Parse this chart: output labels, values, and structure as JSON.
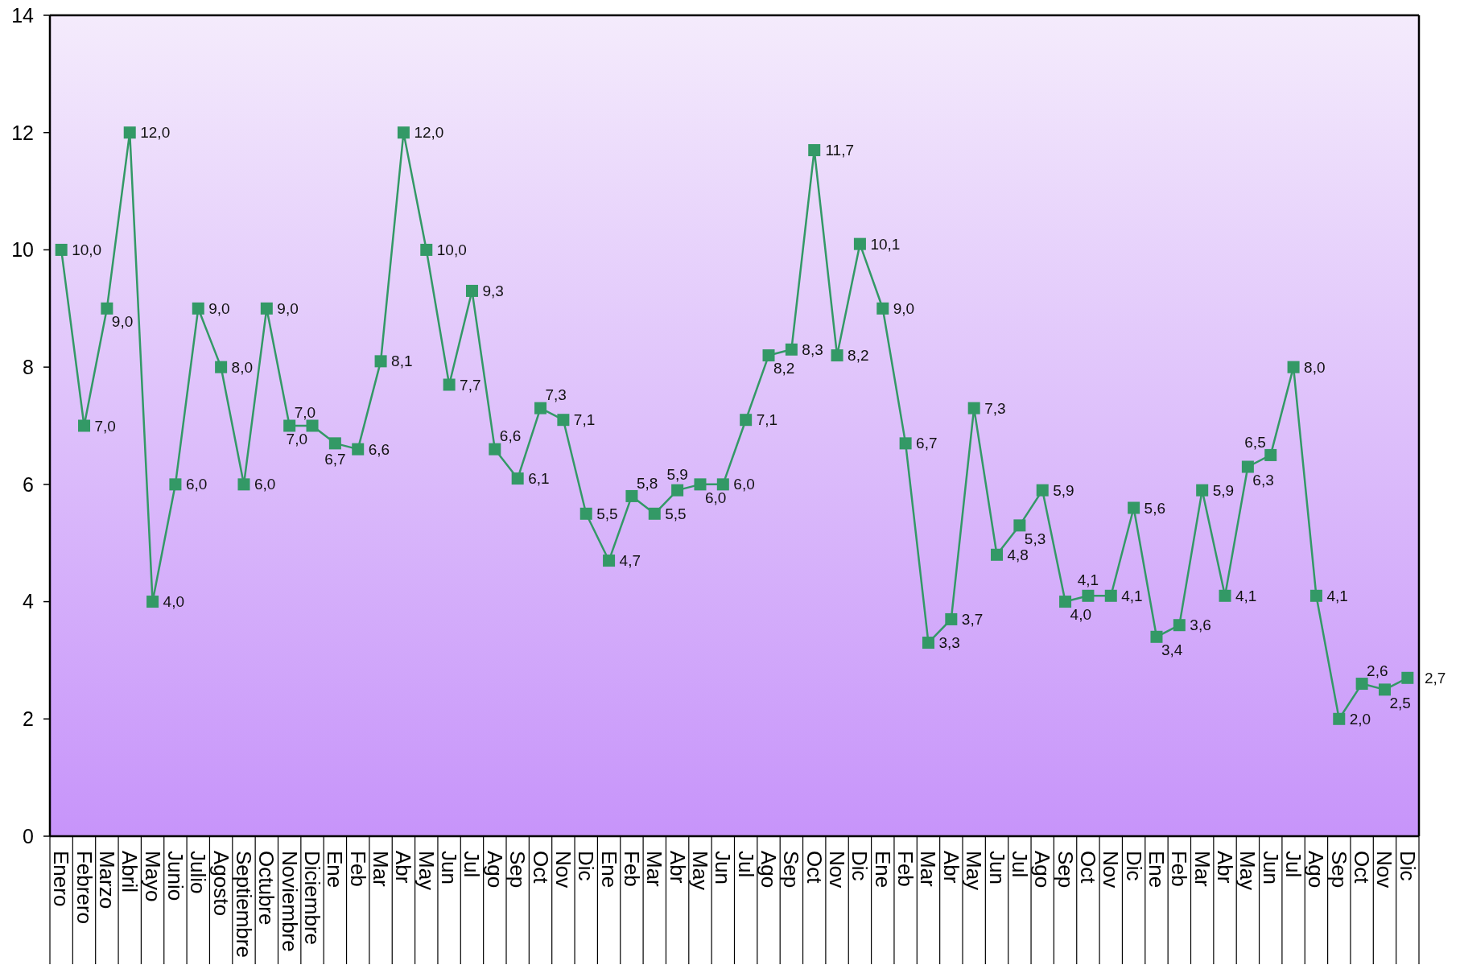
{
  "chart_data": {
    "type": "line",
    "categories": [
      "Enero",
      "Febrero",
      "Marzo",
      "Abril",
      "Mayo",
      "Junio",
      "Julio",
      "Agosto",
      "Septiembre",
      "Octubre",
      "Noviembre",
      "Diciembre",
      "Ene",
      "Feb",
      "Mar",
      "Abr",
      "May",
      "Jun",
      "Jul",
      "Ago",
      "Sep",
      "Oct",
      "Nov",
      "Dic",
      "Ene",
      "Feb",
      "Mar",
      "Abr",
      "May",
      "Jun",
      "Jul",
      "Ago",
      "Sep",
      "Oct",
      "Nov",
      "Dic",
      "Ene",
      "Feb",
      "Mar",
      "Abr",
      "May",
      "Jun",
      "Jul",
      "Ago",
      "Sep",
      "Oct",
      "Nov",
      "Dic",
      "Ene",
      "Feb",
      "Mar",
      "Abr",
      "May",
      "Jun",
      "Jul",
      "Ago",
      "Sep",
      "Oct",
      "Nov",
      "Dic"
    ],
    "series": [
      {
        "color": "#339966",
        "values": [
          10.0,
          7.0,
          9.0,
          12.0,
          4.0,
          6.0,
          9.0,
          8.0,
          6.0,
          9.0,
          7.0,
          7.0,
          6.7,
          6.6,
          8.1,
          12.0,
          10.0,
          7.7,
          9.3,
          6.6,
          6.1,
          7.3,
          7.1,
          5.5,
          4.7,
          5.8,
          5.5,
          5.9,
          6.0,
          6.0,
          7.1,
          8.2,
          8.3,
          11.7,
          8.2,
          10.1,
          9.0,
          6.7,
          3.3,
          3.7,
          7.3,
          4.8,
          5.3,
          5.9,
          4.0,
          4.1,
          4.1,
          5.6,
          3.4,
          3.6,
          5.9,
          4.1,
          6.3,
          6.5,
          8.0,
          4.1,
          2.0,
          2.6,
          2.5,
          2.7
        ],
        "value_labels": [
          "10,0",
          "7,0",
          "9,0",
          "12,0",
          "4,0",
          "6,0",
          "9,0",
          "8,0",
          "6,0",
          "9,0",
          "7,0",
          "7,0",
          "6,7",
          "6,6",
          "8,1",
          "12,0",
          "10,0",
          "7,7",
          "9,3",
          "6,6",
          "6,1",
          "7,3",
          "7,1",
          "5,5",
          "4,7",
          "5,8",
          "5,5",
          "5,9",
          "6,0",
          "6,0",
          "7,1",
          "8,2",
          "8,3",
          "11,7",
          "8,2",
          "10,1",
          "9,0",
          "6,7",
          "3,3",
          "3,7",
          "7,3",
          "4,8",
          "5,3",
          "5,9",
          "4,0",
          "4,1",
          "4,1",
          "5,6",
          "3,4",
          "3,6",
          "5,9",
          "4,1",
          "6,3",
          "6,5",
          "8,0",
          "4,1",
          "2,0",
          "2,6",
          "2,5",
          "2,7"
        ]
      }
    ],
    "ylim": [
      0,
      14
    ],
    "yticks": [
      0,
      2,
      4,
      6,
      8,
      10,
      12,
      14
    ],
    "marker": "square"
  }
}
